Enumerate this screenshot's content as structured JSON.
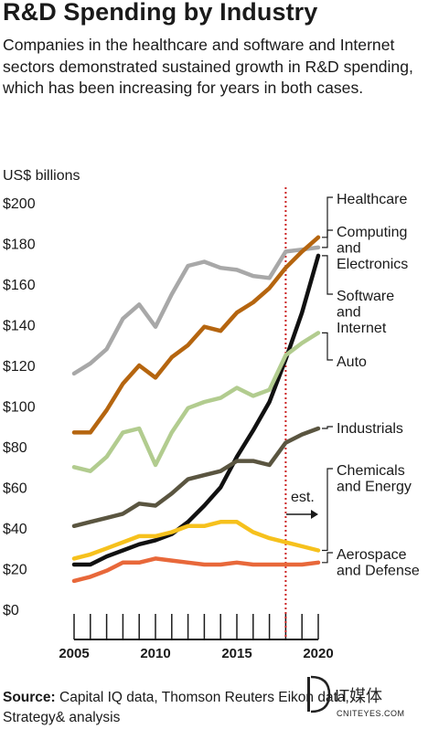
{
  "title": "R&D Spending by Industry",
  "subtitle": "Companies in the healthcare and software and Internet sectors demonstrated sustained growth in R&D spending, which has been increasing for years in both cases.",
  "source_label": "Source:",
  "source_text": " Capital IQ data, Thomson Reuters Eikon data, Strategy& analysis",
  "logo_text": "IT媒体",
  "logo_sub": "CNITEYES.COM",
  "chart_data": {
    "type": "line",
    "title": "",
    "xlabel": "",
    "ylabel": "US$ billions",
    "xlim": [
      2005,
      2020
    ],
    "ylim": [
      0,
      200
    ],
    "yticks": [
      0,
      20,
      40,
      60,
      80,
      100,
      120,
      140,
      160,
      180,
      200
    ],
    "ytick_labels": [
      "$0",
      "$20",
      "$40",
      "$60",
      "$80",
      "$100",
      "$120",
      "$140",
      "$160",
      "$180",
      "$200"
    ],
    "xticks": [
      2005,
      2010,
      2015,
      2020
    ],
    "x": [
      2005,
      2006,
      2007,
      2008,
      2009,
      2010,
      2011,
      2012,
      2013,
      2014,
      2015,
      2016,
      2017,
      2018,
      2019,
      2020
    ],
    "estimate_start": 2018,
    "annotation": "est.",
    "grid": false,
    "legend": "right",
    "series": [
      {
        "name": "Healthcare",
        "color": "#a8a8a8",
        "values": [
          116,
          121,
          128,
          143,
          150,
          139,
          155,
          169,
          171,
          168,
          167,
          164,
          163,
          176,
          177,
          178
        ]
      },
      {
        "name": "Computing and Electronics",
        "color": "#b5650f",
        "values": [
          87,
          87,
          98,
          111,
          120,
          114,
          124,
          130,
          139,
          137,
          146,
          151,
          158,
          168,
          176,
          183
        ]
      },
      {
        "name": "Software and Internet",
        "color": "#111111",
        "values": [
          22,
          22,
          26,
          29,
          32,
          34,
          37,
          43,
          51,
          60,
          75,
          88,
          102,
          123,
          146,
          174
        ]
      },
      {
        "name": "Auto",
        "color": "#b2cc8f",
        "values": [
          70,
          68,
          75,
          87,
          89,
          71,
          87,
          99,
          102,
          104,
          109,
          105,
          108,
          125,
          131,
          136
        ]
      },
      {
        "name": "Industrials",
        "color": "#5a5540",
        "values": [
          41,
          43,
          45,
          47,
          52,
          51,
          57,
          64,
          66,
          68,
          73,
          73,
          71,
          82,
          86,
          89
        ]
      },
      {
        "name": "Chemicals and Energy",
        "color": "#f6c11d",
        "values": [
          25,
          27,
          30,
          33,
          36,
          36,
          38,
          41,
          41,
          43,
          43,
          38,
          35,
          33,
          31,
          29
        ]
      },
      {
        "name": "Aerospace and Defense",
        "color": "#e8683a",
        "values": [
          14,
          16,
          19,
          23,
          23,
          25,
          24,
          23,
          22,
          22,
          23,
          22,
          22,
          22,
          22,
          23
        ]
      }
    ],
    "labels": [
      {
        "series": "Healthcare",
        "lines": [
          "Healthcare"
        ]
      },
      {
        "series": "Computing and Electronics",
        "lines": [
          "Computing",
          "and",
          "Electronics"
        ]
      },
      {
        "series": "Software and Internet",
        "lines": [
          "Software",
          "and",
          "Internet"
        ]
      },
      {
        "series": "Auto",
        "lines": [
          "Auto"
        ]
      },
      {
        "series": "Industrials",
        "lines": [
          "Industrials"
        ]
      },
      {
        "series": "Chemicals and Energy",
        "lines": [
          "Chemicals",
          "and Energy"
        ]
      },
      {
        "series": "Aerospace and Defense",
        "lines": [
          "Aerospace",
          "and Defense"
        ]
      }
    ]
  }
}
